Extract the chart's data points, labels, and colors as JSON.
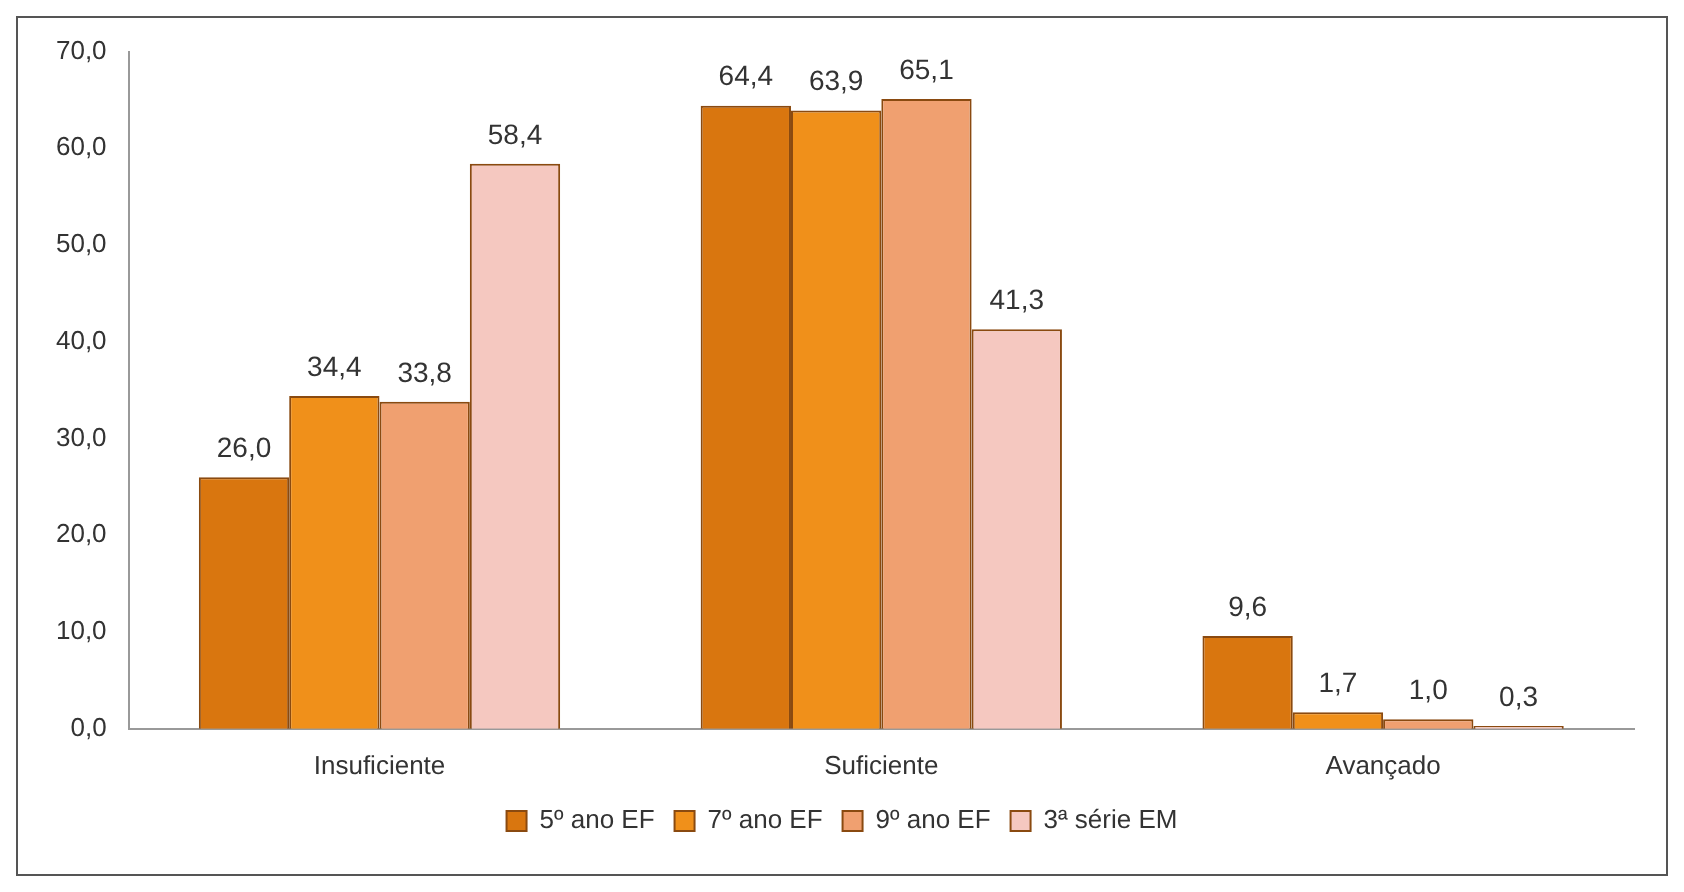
{
  "chart_data": {
    "type": "bar",
    "categories": [
      "Insuficiente",
      "Suficiente",
      "Avançado"
    ],
    "series": [
      {
        "name": "5º ano EF",
        "color": "#d9760f",
        "values": [
          26.0,
          64.4,
          9.6
        ],
        "value_labels": [
          "26,0",
          "64,4",
          "9,6"
        ]
      },
      {
        "name": "7º ano EF",
        "color": "#f0901a",
        "values": [
          34.4,
          63.9,
          1.7
        ],
        "value_labels": [
          "34,4",
          "63,9",
          "1,7"
        ]
      },
      {
        "name": "9º ano EF",
        "color": "#f0a070",
        "values": [
          33.8,
          65.1,
          1.0
        ],
        "value_labels": [
          "33,8",
          "65,1",
          "1,0"
        ]
      },
      {
        "name": "3ª série EM",
        "color": "#f5c8c0",
        "values": [
          58.4,
          41.3,
          0.3
        ],
        "value_labels": [
          "58,4",
          "41,3",
          "0,3"
        ]
      }
    ],
    "ylim": [
      0,
      70
    ],
    "yticks": [
      {
        "value": 0,
        "label": "0,0"
      },
      {
        "value": 10,
        "label": "10,0"
      },
      {
        "value": 20,
        "label": "20,0"
      },
      {
        "value": 30,
        "label": "30,0"
      },
      {
        "value": 40,
        "label": "40,0"
      },
      {
        "value": 50,
        "label": "50,0"
      },
      {
        "value": 60,
        "label": "60,0"
      },
      {
        "value": 70,
        "label": "70,0"
      }
    ],
    "grid": false,
    "legend": "bottom"
  }
}
